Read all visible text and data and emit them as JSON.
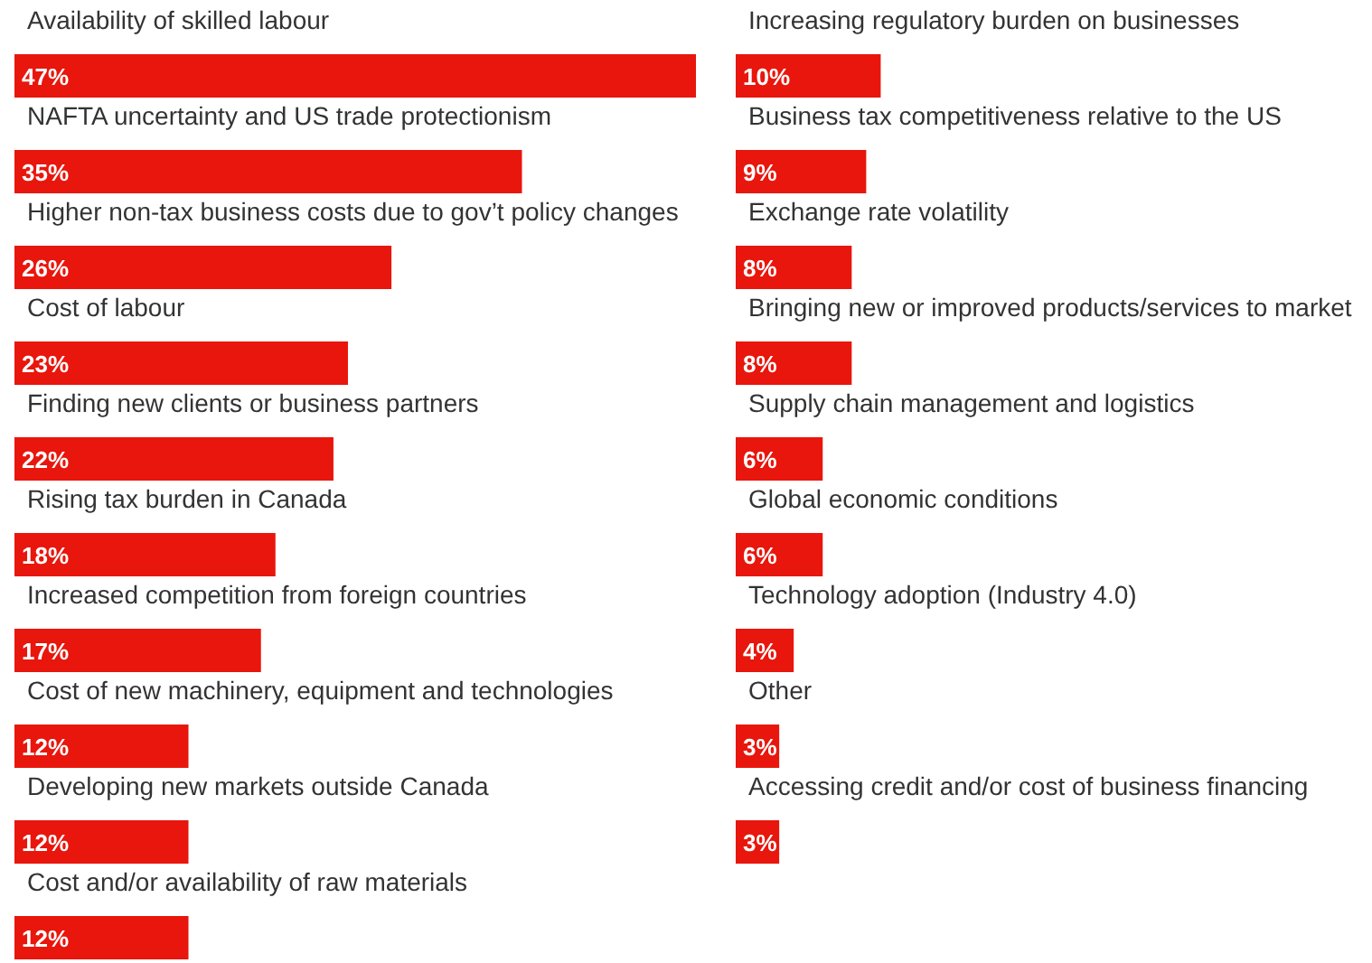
{
  "chart_data": [
    {
      "type": "bar",
      "orientation": "horizontal",
      "categories": [
        "Availability of skilled labour",
        "NAFTA uncertainty and US trade protectionism",
        "Higher non-tax business costs due to gov’t policy changes",
        "Cost of labour",
        "Finding new clients or business partners",
        "Rising tax burden in Canada",
        "Increased competition from foreign countries",
        "Cost of new machinery, equipment and technologies",
        "Developing new markets outside Canada",
        "Cost and/or availability of raw materials"
      ],
      "values": [
        47,
        35,
        26,
        23,
        22,
        18,
        17,
        12,
        12,
        12
      ],
      "value_labels": [
        "47%",
        "35%",
        "26%",
        "23%",
        "22%",
        "18%",
        "17%",
        "12%",
        "12%",
        "12%"
      ],
      "color": "#e8160c"
    },
    {
      "type": "bar",
      "orientation": "horizontal",
      "categories": [
        "Increasing regulatory burden on businesses",
        "Business tax competitiveness relative to the US",
        "Exchange rate volatility",
        "Bringing new or improved products/services to market",
        "Supply chain management and logistics",
        "Global economic conditions",
        "Technology adoption (Industry 4.0)",
        "Other",
        "Accessing credit and/or cost of business financing"
      ],
      "values": [
        10,
        9,
        8,
        8,
        6,
        6,
        4,
        3,
        3
      ],
      "value_labels": [
        "10%",
        "9%",
        "8%",
        "8%",
        "6%",
        "6%",
        "4%",
        "3%",
        "3%"
      ],
      "color": "#e8160c"
    }
  ]
}
